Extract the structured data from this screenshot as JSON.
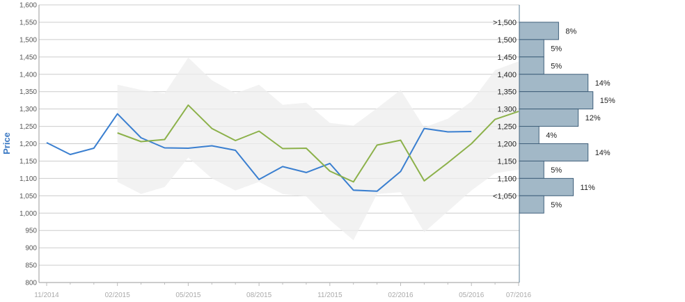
{
  "chart_data": {
    "type": "line",
    "ylabel": "Price",
    "ylim": [
      800,
      1600
    ],
    "y_ticks": [
      "800",
      "850",
      "900",
      "950",
      "1,000",
      "1,050",
      "1,100",
      "1,150",
      "1,200",
      "1,250",
      "1,300",
      "1,350",
      "1,400",
      "1,450",
      "1,500",
      "1,550",
      "1,600"
    ],
    "x_ticks": [
      "11/2014",
      "02/2015",
      "05/2015",
      "08/2015",
      "11/2015",
      "02/2016",
      "05/2016",
      "07/2016"
    ],
    "colors": {
      "blue_series": "#3a7fd0",
      "green_series": "#8cb14a",
      "band": "#eeeeee",
      "grid": "#cccccc",
      "histogram_bar": "#a2b8c7",
      "histogram_border": "#3f5f7a",
      "axis": "#5a7b93"
    },
    "band": {
      "x": [
        "02/2015",
        "03/2015",
        "04/2015",
        "05/2015",
        "06/2015",
        "07/2015",
        "08/2015",
        "09/2015",
        "10/2015",
        "11/2015",
        "12/2015",
        "01/2016",
        "02/2016",
        "03/2016",
        "04/2016",
        "05/2016",
        "06/2016",
        "07/2016"
      ],
      "upper": [
        1370,
        1355,
        1345,
        1448,
        1383,
        1345,
        1370,
        1312,
        1318,
        1260,
        1252,
        1302,
        1355,
        1247,
        1272,
        1322,
        1412,
        1437
      ],
      "lower": [
        1090,
        1055,
        1075,
        1160,
        1100,
        1065,
        1090,
        1055,
        1048,
        980,
        922,
        1055,
        1060,
        945,
        1005,
        1065,
        1115,
        1125
      ]
    },
    "series": [
      {
        "x": [
          "11/2014",
          "12/2014",
          "01/2015",
          "02/2015",
          "03/2015",
          "04/2015",
          "05/2015",
          "06/2015",
          "07/2015",
          "08/2015",
          "09/2015",
          "10/2015",
          "11/2015",
          "12/2015",
          "01/2016",
          "02/2016",
          "03/2016",
          "04/2016",
          "05/2016"
        ],
        "values": [
          1203,
          1169,
          1187,
          1286,
          1217,
          1188,
          1187,
          1194,
          1181,
          1097,
          1134,
          1117,
          1143,
          1066,
          1063,
          1120,
          1244,
          1234,
          1235
        ]
      },
      {
        "x": [
          "02/2015",
          "03/2015",
          "04/2015",
          "05/2015",
          "06/2015",
          "07/2015",
          "08/2015",
          "09/2015",
          "10/2015",
          "11/2015",
          "12/2015",
          "01/2016",
          "02/2016",
          "03/2016",
          "04/2016",
          "05/2016",
          "06/2016",
          "07/2016"
        ],
        "values": [
          1231,
          1206,
          1212,
          1311,
          1244,
          1209,
          1236,
          1186,
          1187,
          1121,
          1090,
          1196,
          1210,
          1093,
          1145,
          1200,
          1270,
          1293
        ]
      }
    ],
    "histogram": {
      "bins": [
        ">1,500",
        "1,500",
        "1,450",
        "1,400",
        "1,350",
        "1,300",
        "1,250",
        "1,200",
        "1,150",
        "1,100",
        "<1,050"
      ],
      "bin_centers": [
        1525,
        1475,
        1425,
        1375,
        1325,
        1275,
        1225,
        1175,
        1125,
        1075,
        1025
      ],
      "percent": [
        8,
        5,
        5,
        14,
        15,
        12,
        4,
        14,
        5,
        11,
        5
      ],
      "labels": [
        "8%",
        "5%",
        "5%",
        "14%",
        "15%",
        "12%",
        "4%",
        "14%",
        "5%",
        "11%",
        "5%"
      ]
    }
  }
}
